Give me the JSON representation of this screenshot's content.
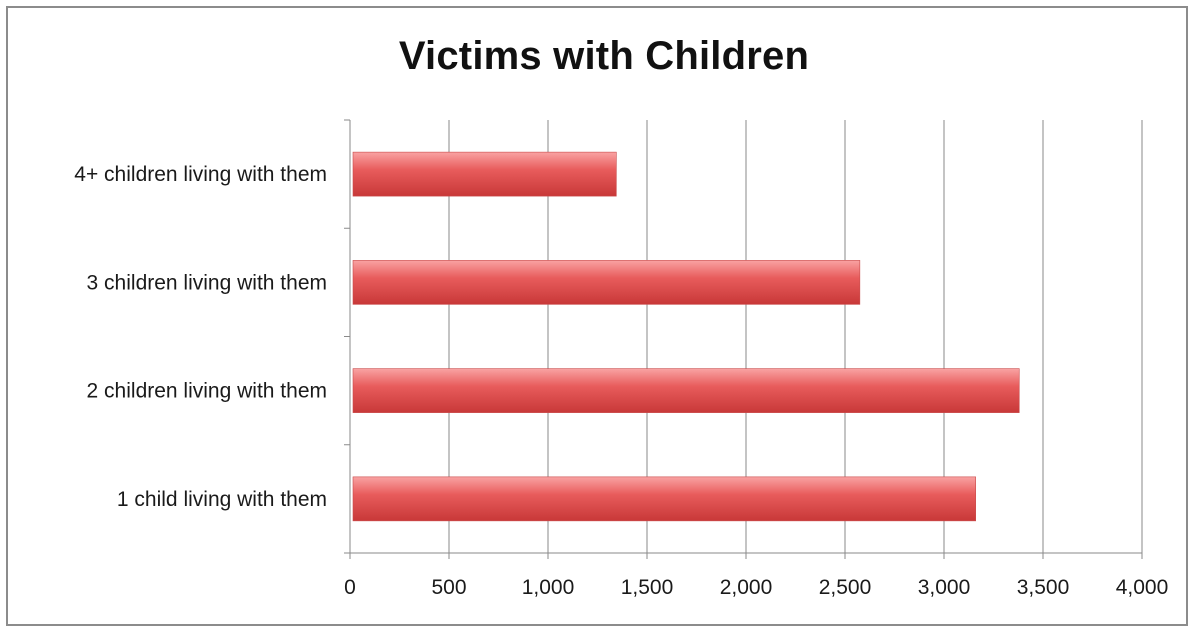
{
  "chart_data": {
    "type": "bar",
    "orientation": "horizontal",
    "title": "Victims with Children",
    "categories": [
      "1 child living with them",
      "2 children living with them",
      "3 children living with them",
      "4+ children living with them"
    ],
    "values": [
      3160,
      3380,
      2575,
      1345
    ],
    "xlim": [
      0,
      4000
    ],
    "xticks": [
      0,
      500,
      1000,
      1500,
      2000,
      2500,
      3000,
      3500,
      4000
    ],
    "xtick_labels": [
      "0",
      "500",
      "1,000",
      "1,500",
      "2,000",
      "2,500",
      "3,000",
      "3,500",
      "4,000"
    ],
    "xlabel": "",
    "ylabel": "",
    "grid": "vertical",
    "legend": "none",
    "bar_color": "#e85c5c",
    "bar_highlight": "#f9a3a3",
    "bar_shadow": "#c83838"
  }
}
